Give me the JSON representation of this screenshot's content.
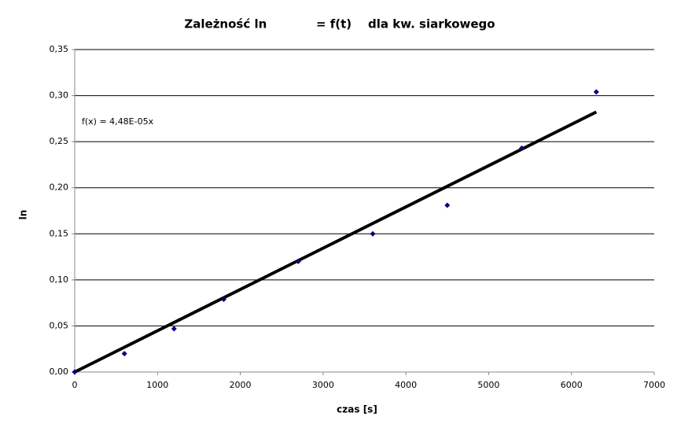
{
  "chart_data": {
    "type": "scatter",
    "title": "Zależność ln            = f(t)    dla kw. siarkowego",
    "x_label": "czas [s]",
    "y_label": "ln",
    "series": [
      {
        "name": "ln",
        "color": "#000080",
        "x": [
          0,
          600,
          1200,
          1800,
          2700,
          3600,
          4500,
          5400,
          6300
        ],
        "values": [
          0,
          0.02,
          0.047,
          0.079,
          0.12,
          0.15,
          0.181,
          0.243,
          0.304
        ]
      }
    ],
    "trendline": {
      "slope": 4.48e-05,
      "label": "f(x) = 4,48E-05x",
      "color": "#000000"
    },
    "xlim": [
      0,
      7000
    ],
    "xticks": [
      0,
      1000,
      2000,
      3000,
      4000,
      5000,
      6000,
      7000
    ],
    "ylim": [
      0,
      0.35
    ],
    "yticks": [
      {
        "value": 0,
        "label": "0,00"
      },
      {
        "value": 0.05,
        "label": "0,05"
      },
      {
        "value": 0.1,
        "label": "0,10"
      },
      {
        "value": 0.15,
        "label": "0,15"
      },
      {
        "value": 0.2,
        "label": "0,20"
      },
      {
        "value": 0.25,
        "label": "0,25"
      },
      {
        "value": 0.3,
        "label": "0,30"
      },
      {
        "value": 0.35,
        "label": "0,35"
      }
    ],
    "grid": true
  }
}
